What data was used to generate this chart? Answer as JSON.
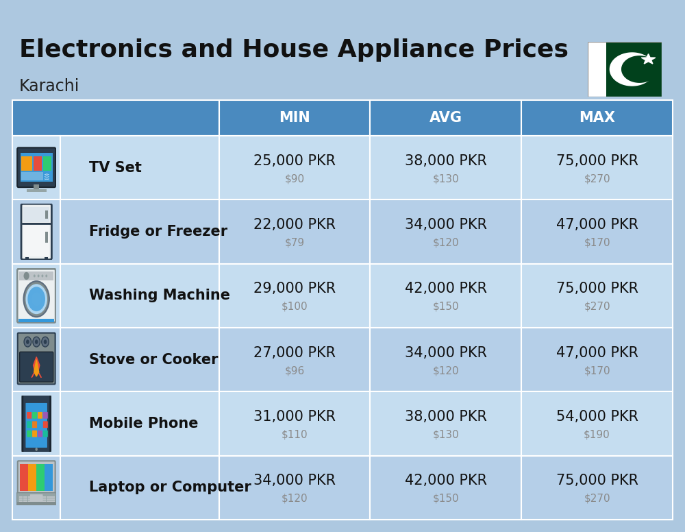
{
  "title": "Electronics and House Appliance Prices",
  "subtitle": "Karachi",
  "bg_color": "#adc8e0",
  "header_color": "#4a8abf",
  "header_text_color": "#ffffff",
  "row_bg_even": "#c5ddf0",
  "row_bg_odd": "#b5cfe8",
  "white_line": "#ffffff",
  "col_headers": [
    "MIN",
    "AVG",
    "MAX"
  ],
  "items": [
    {
      "name": "TV Set",
      "min_pkr": "25,000 PKR",
      "min_usd": "$90",
      "avg_pkr": "38,000 PKR",
      "avg_usd": "$130",
      "max_pkr": "75,000 PKR",
      "max_usd": "$270"
    },
    {
      "name": "Fridge or Freezer",
      "min_pkr": "22,000 PKR",
      "min_usd": "$79",
      "avg_pkr": "34,000 PKR",
      "avg_usd": "$120",
      "max_pkr": "47,000 PKR",
      "max_usd": "$170"
    },
    {
      "name": "Washing Machine",
      "min_pkr": "29,000 PKR",
      "min_usd": "$100",
      "avg_pkr": "42,000 PKR",
      "avg_usd": "$150",
      "max_pkr": "75,000 PKR",
      "max_usd": "$270"
    },
    {
      "name": "Stove or Cooker",
      "min_pkr": "27,000 PKR",
      "min_usd": "$96",
      "avg_pkr": "34,000 PKR",
      "avg_usd": "$120",
      "max_pkr": "47,000 PKR",
      "max_usd": "$170"
    },
    {
      "name": "Mobile Phone",
      "min_pkr": "31,000 PKR",
      "min_usd": "$110",
      "avg_pkr": "38,000 PKR",
      "avg_usd": "$130",
      "max_pkr": "54,000 PKR",
      "max_usd": "$190"
    },
    {
      "name": "Laptop or Computer",
      "min_pkr": "34,000 PKR",
      "min_usd": "$120",
      "avg_pkr": "42,000 PKR",
      "avg_usd": "$150",
      "max_pkr": "75,000 PKR",
      "max_usd": "$270"
    }
  ],
  "title_fontsize": 26,
  "subtitle_fontsize": 17,
  "header_fontsize": 15,
  "item_name_fontsize": 15,
  "price_pkr_fontsize": 15,
  "price_usd_fontsize": 11
}
